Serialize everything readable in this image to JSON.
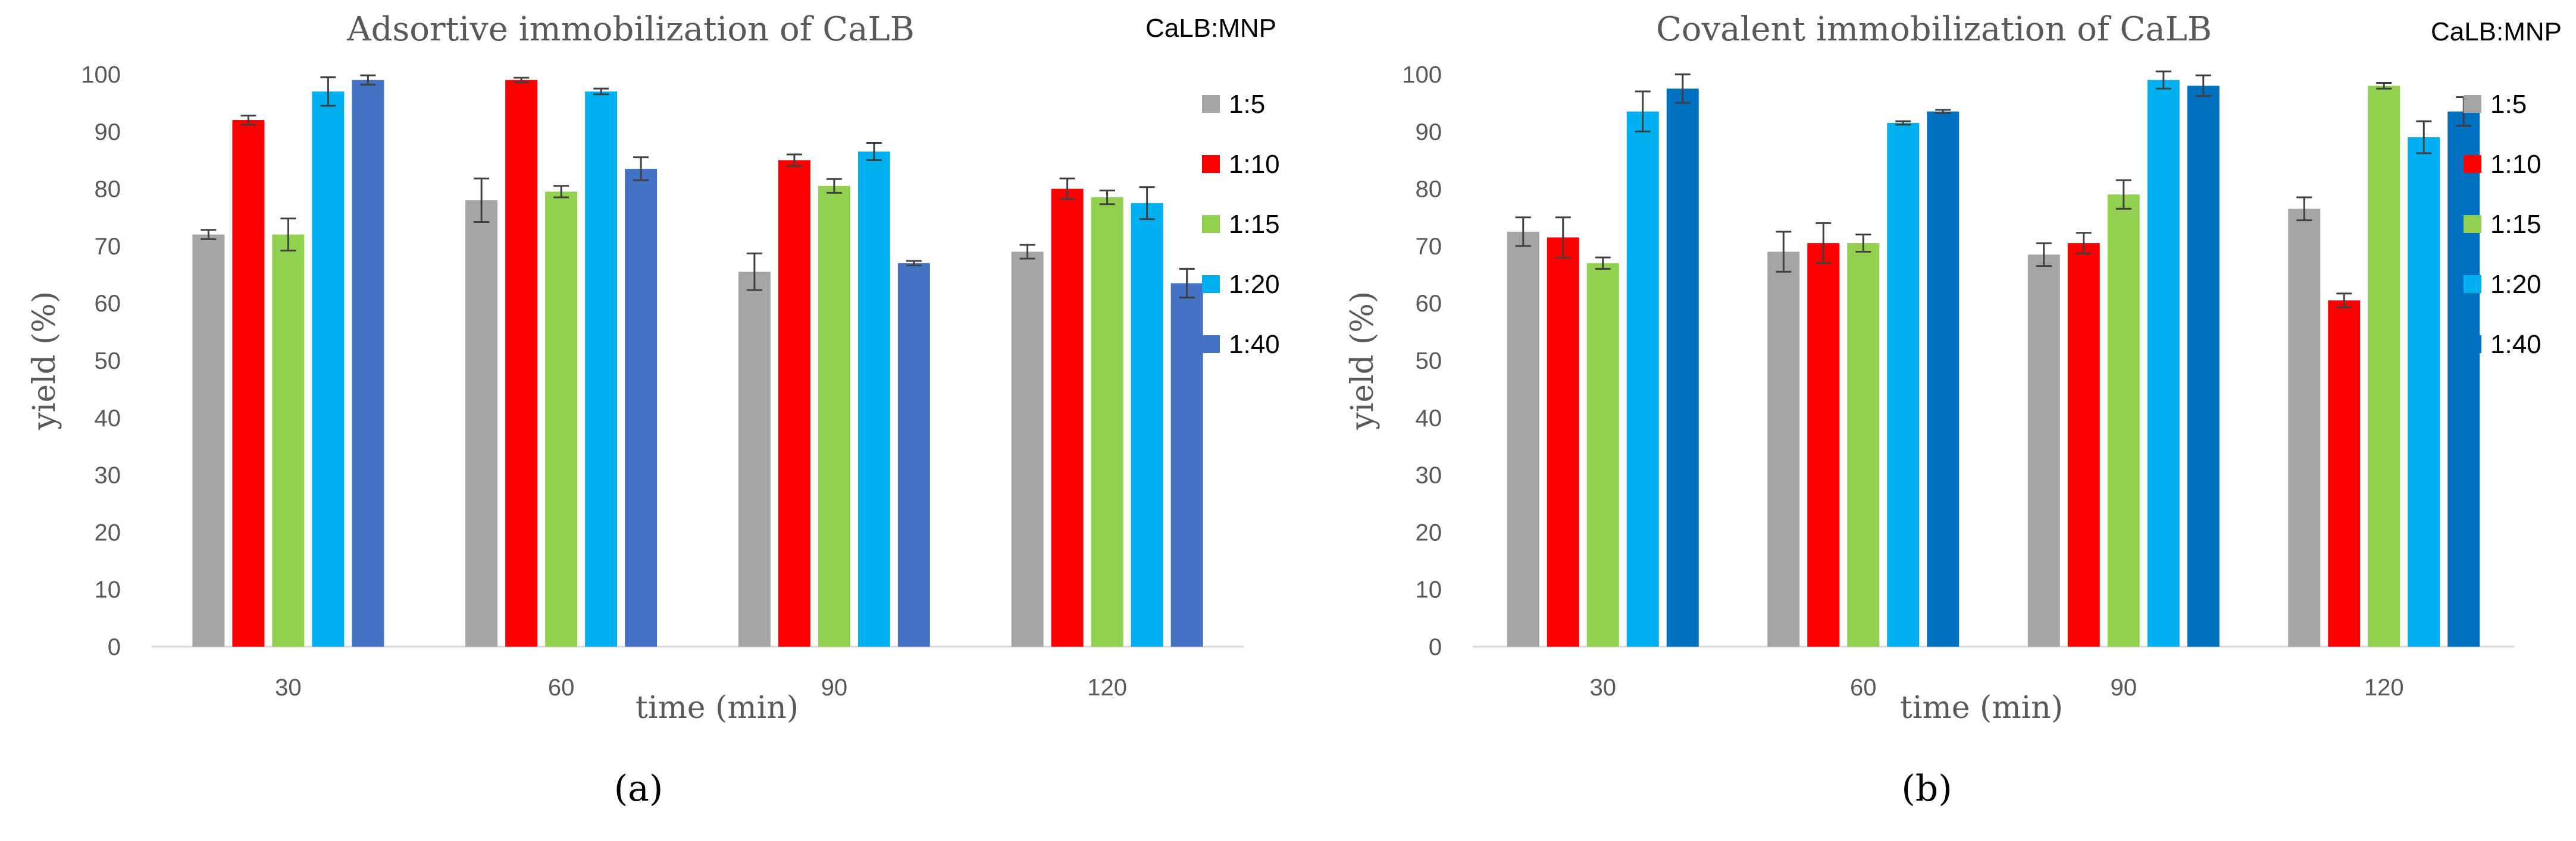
{
  "legend_title": "CaLB:MNP",
  "chart_data": [
    {
      "type": "bar",
      "panel_label_open": "(",
      "panel_letter": "a",
      "panel_label_close": ")",
      "title": "Adsortive immobilization of CaLB",
      "xlabel": "time (min)",
      "ylabel": "yield (%)",
      "ylim": [
        0,
        100
      ],
      "yticks": [
        0,
        10,
        20,
        30,
        40,
        50,
        60,
        70,
        80,
        90,
        100
      ],
      "categories": [
        "30",
        "60",
        "90",
        "120"
      ],
      "series": [
        {
          "name": "1:5",
          "color": "#a5a5a5",
          "values": [
            72,
            78,
            65.5,
            69
          ],
          "errors": [
            0.8,
            3.8,
            3.2,
            1.2
          ]
        },
        {
          "name": "1:10",
          "color": "#ff0000",
          "values": [
            92,
            99,
            85,
            80
          ],
          "errors": [
            0.8,
            0.4,
            1.0,
            1.8
          ]
        },
        {
          "name": "1:15",
          "color": "#92d050",
          "values": [
            72,
            79.5,
            80.5,
            78.5
          ],
          "errors": [
            2.8,
            1.0,
            1.2,
            1.2
          ]
        },
        {
          "name": "1:20",
          "color": "#00b0f0",
          "values": [
            97,
            97,
            86.5,
            77.5
          ],
          "errors": [
            2.5,
            0.5,
            1.5,
            2.8
          ]
        },
        {
          "name": "1:40",
          "color": "#4472c4",
          "values": [
            99,
            83.5,
            67,
            63.5
          ],
          "errors": [
            0.8,
            2.0,
            0.4,
            2.5
          ]
        }
      ]
    },
    {
      "type": "bar",
      "panel_label_open": "(",
      "panel_letter": "b",
      "panel_label_close": ")",
      "title": "Covalent immobilization of CaLB",
      "xlabel": "time (min)",
      "ylabel": "yield (%)",
      "ylim": [
        0,
        100
      ],
      "yticks": [
        0,
        10,
        20,
        30,
        40,
        50,
        60,
        70,
        80,
        90,
        100
      ],
      "categories": [
        "30",
        "60",
        "90",
        "120"
      ],
      "series": [
        {
          "name": "1:5",
          "color": "#a5a5a5",
          "values": [
            72.5,
            69,
            68.5,
            76.5
          ],
          "errors": [
            2.5,
            3.5,
            2.0,
            2.0
          ]
        },
        {
          "name": "1:10",
          "color": "#ff0000",
          "values": [
            71.5,
            70.5,
            70.5,
            60.5
          ],
          "errors": [
            3.5,
            3.5,
            1.8,
            1.2
          ]
        },
        {
          "name": "1:15",
          "color": "#92d050",
          "values": [
            67,
            70.5,
            79,
            98
          ],
          "errors": [
            1.0,
            1.5,
            2.5,
            0.5
          ]
        },
        {
          "name": "1:20",
          "color": "#00b0f0",
          "values": [
            93.5,
            91.5,
            99,
            89
          ],
          "errors": [
            3.5,
            0.3,
            1.5,
            2.8
          ]
        },
        {
          "name": "1:40",
          "color": "#0070c0",
          "values": [
            97.5,
            93.5,
            98,
            93.5
          ],
          "errors": [
            2.5,
            0.3,
            1.8,
            2.5
          ]
        }
      ]
    }
  ]
}
